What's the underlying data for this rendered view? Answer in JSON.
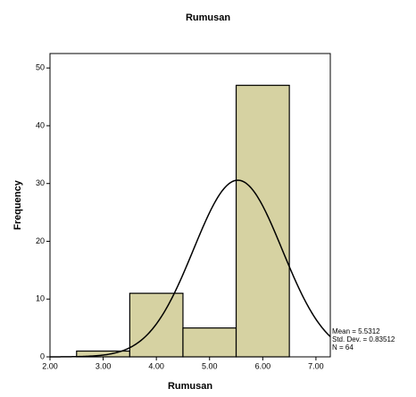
{
  "chart_data": {
    "type": "histogram",
    "title": "Rumusan",
    "x_label": "Rumusan",
    "y_label": "Frequency",
    "bins": [
      2.5,
      3.5,
      4.5,
      5.5,
      6.5
    ],
    "values": [
      1,
      11,
      5,
      47
    ],
    "color": "#d6d2a2",
    "xlim": [
      2.0,
      7.27
    ],
    "ylim": [
      0,
      52.5
    ],
    "xticks": [
      {
        "value": 2,
        "label": "2.00"
      },
      {
        "value": 3,
        "label": "3.00"
      },
      {
        "value": 4,
        "label": "4.00"
      },
      {
        "value": 5,
        "label": "5.00"
      },
      {
        "value": 6,
        "label": "6.00"
      },
      {
        "value": 7,
        "label": "7.00"
      }
    ],
    "yticks": [
      0,
      10,
      20,
      30,
      40,
      50
    ],
    "normal_curve": {
      "values": [
        5.5312,
        0.83512,
        64
      ],
      "value_labels": [
        "Mean = 5.5312",
        "Std. Dev. = 0.83512",
        "N = 64"
      ]
    }
  }
}
